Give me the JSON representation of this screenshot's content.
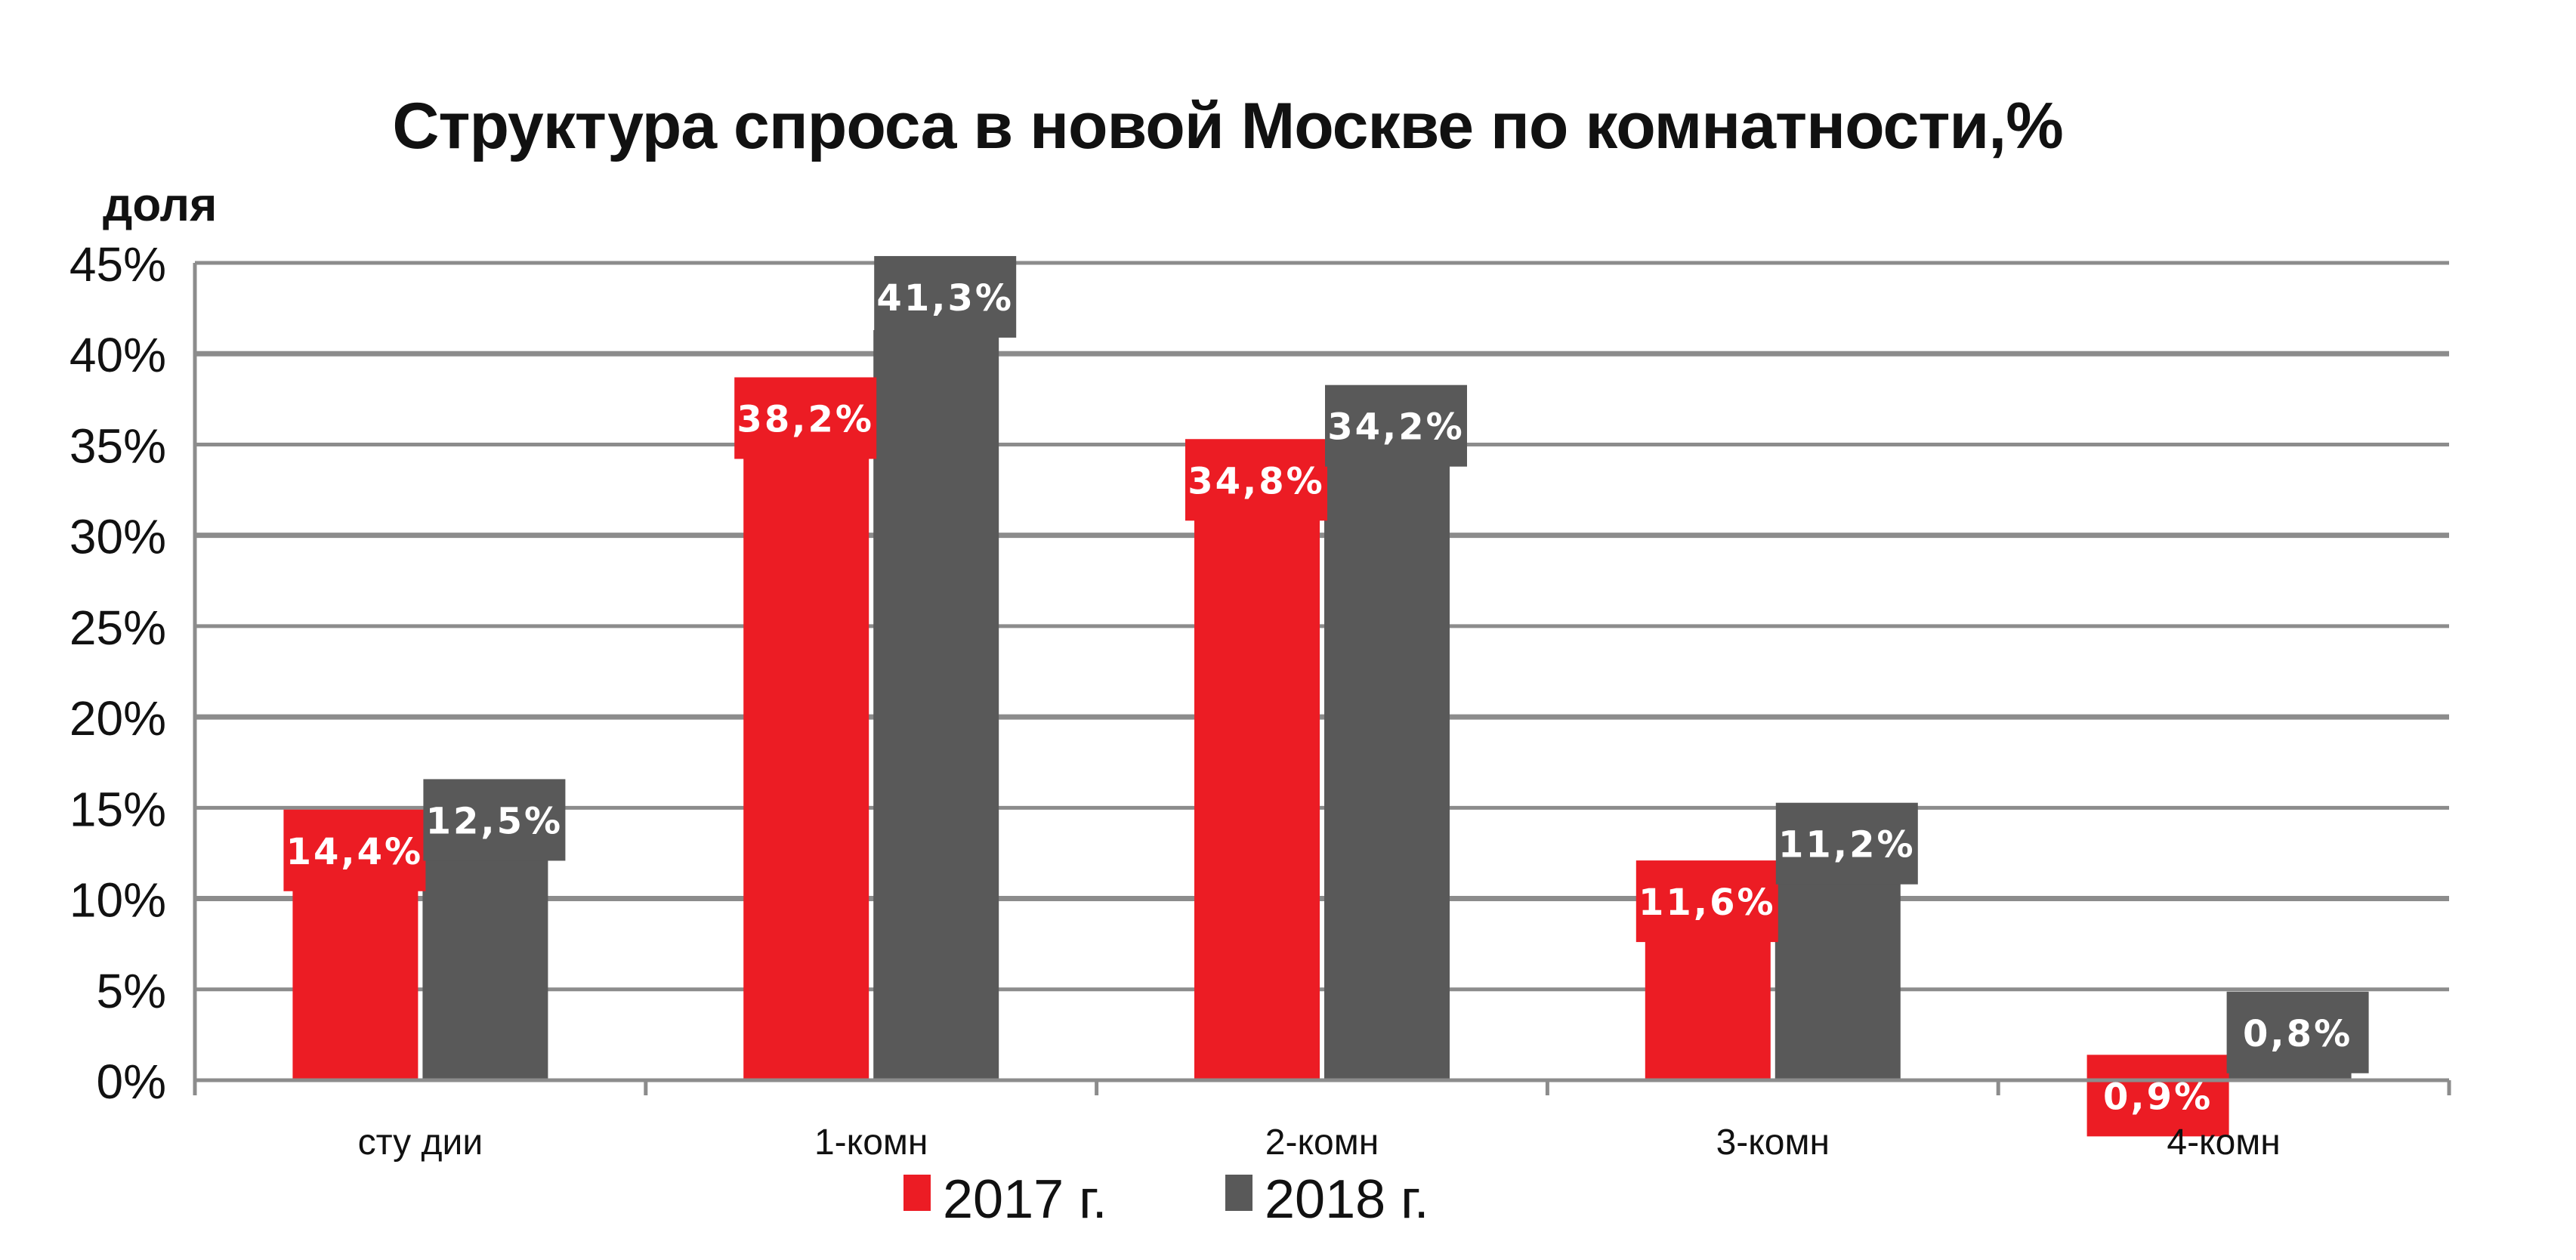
{
  "chart_data": {
    "type": "bar",
    "title": "Структура  спроса в новой Москве по комнатности,%",
    "ylabel": "доля",
    "xlabel": "",
    "categories": [
      "сту дии",
      "1-комн",
      "2-комн",
      "3-комн",
      "4-комн"
    ],
    "series": [
      {
        "name": "2017 г.",
        "values": [
          14.4,
          38.2,
          34.8,
          11.6,
          0.9
        ],
        "labels": [
          "14,4%",
          "38,2%",
          "34,8%",
          "11,6%",
          "0,9%"
        ],
        "color": "#ec1c24"
      },
      {
        "name": "2018 г.",
        "values": [
          12.5,
          41.3,
          34.2,
          11.2,
          0.8
        ],
        "labels": [
          "12,5%",
          "41,3%",
          "34,2%",
          "11,2%",
          "0,8%"
        ],
        "color": "#595959"
      }
    ],
    "ylim": [
      0,
      45
    ],
    "yticks": [
      0,
      5,
      10,
      15,
      20,
      25,
      30,
      35,
      40,
      45
    ],
    "ytick_labels": [
      "0%",
      "5%",
      "10%",
      "15%",
      "20%",
      "25%",
      "30%",
      "35%",
      "40%",
      "45%"
    ],
    "grid": true,
    "legend_position": "bottom-center"
  }
}
